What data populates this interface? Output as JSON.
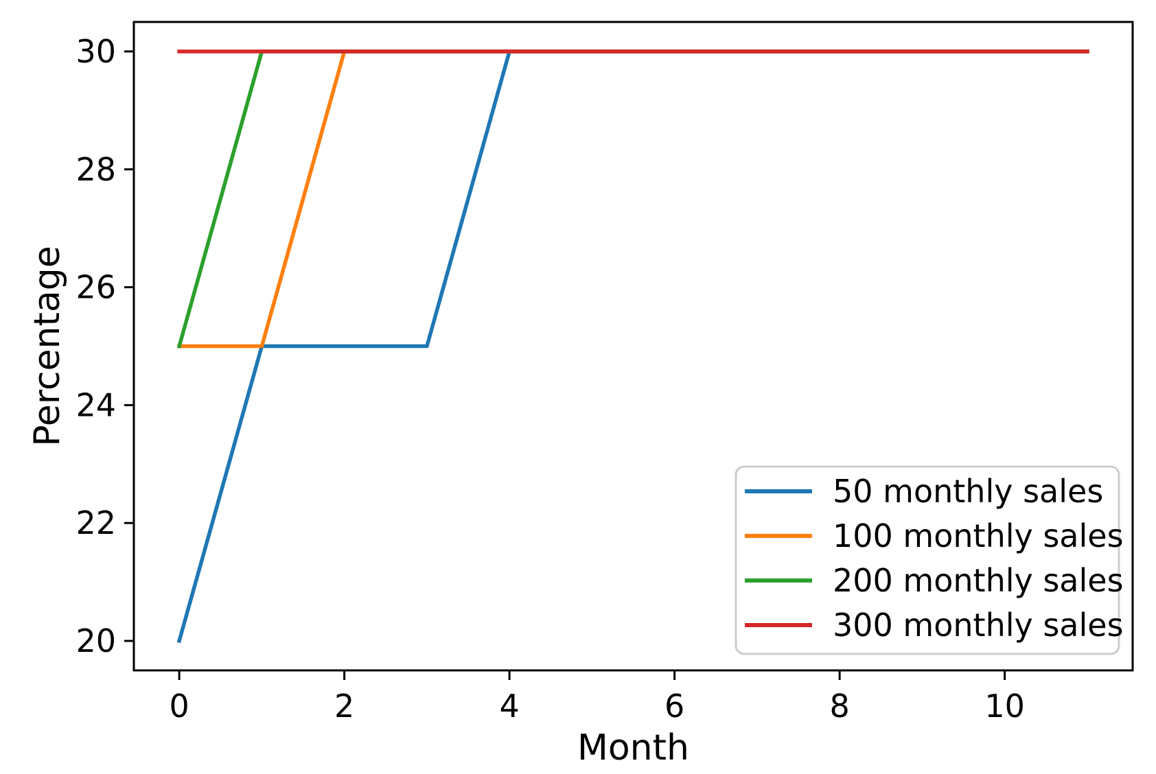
{
  "chart_data": {
    "type": "line",
    "title": "",
    "xlabel": "Month",
    "ylabel": "Percentage",
    "x": [
      0,
      1,
      2,
      3,
      4,
      5,
      6,
      7,
      8,
      9,
      10,
      11
    ],
    "series": [
      {
        "name": "50 monthly sales",
        "color": "#1f77b4",
        "values": [
          20,
          25,
          25,
          25,
          30,
          30,
          30,
          30,
          30,
          30,
          30,
          30
        ]
      },
      {
        "name": "100 monthly sales",
        "color": "#ff7f0e",
        "values": [
          25,
          25,
          30,
          30,
          30,
          30,
          30,
          30,
          30,
          30,
          30,
          30
        ]
      },
      {
        "name": "200 monthly sales",
        "color": "#2ca02c",
        "values": [
          25,
          30,
          30,
          30,
          30,
          30,
          30,
          30,
          30,
          30,
          30,
          30
        ]
      },
      {
        "name": "300 monthly sales",
        "color": "#d62728",
        "values": [
          30,
          30,
          30,
          30,
          30,
          30,
          30,
          30,
          30,
          30,
          30,
          30
        ]
      }
    ],
    "xticks": [
      0,
      2,
      4,
      6,
      8,
      10
    ],
    "yticks": [
      20,
      22,
      24,
      26,
      28,
      30
    ],
    "xlim": [
      -0.55,
      11.55
    ],
    "ylim": [
      19.5,
      30.5
    ],
    "grid": false,
    "legend": {
      "position": "lower right",
      "entries": [
        "50 monthly sales",
        "100 monthly sales",
        "200 monthly sales",
        "300 monthly sales"
      ]
    }
  },
  "colors": {
    "background": "#ffffff",
    "spine": "#000000",
    "tick": "#000000",
    "text": "#000000",
    "legend_border": "#cccccc",
    "legend_fill": "#ffffff"
  }
}
